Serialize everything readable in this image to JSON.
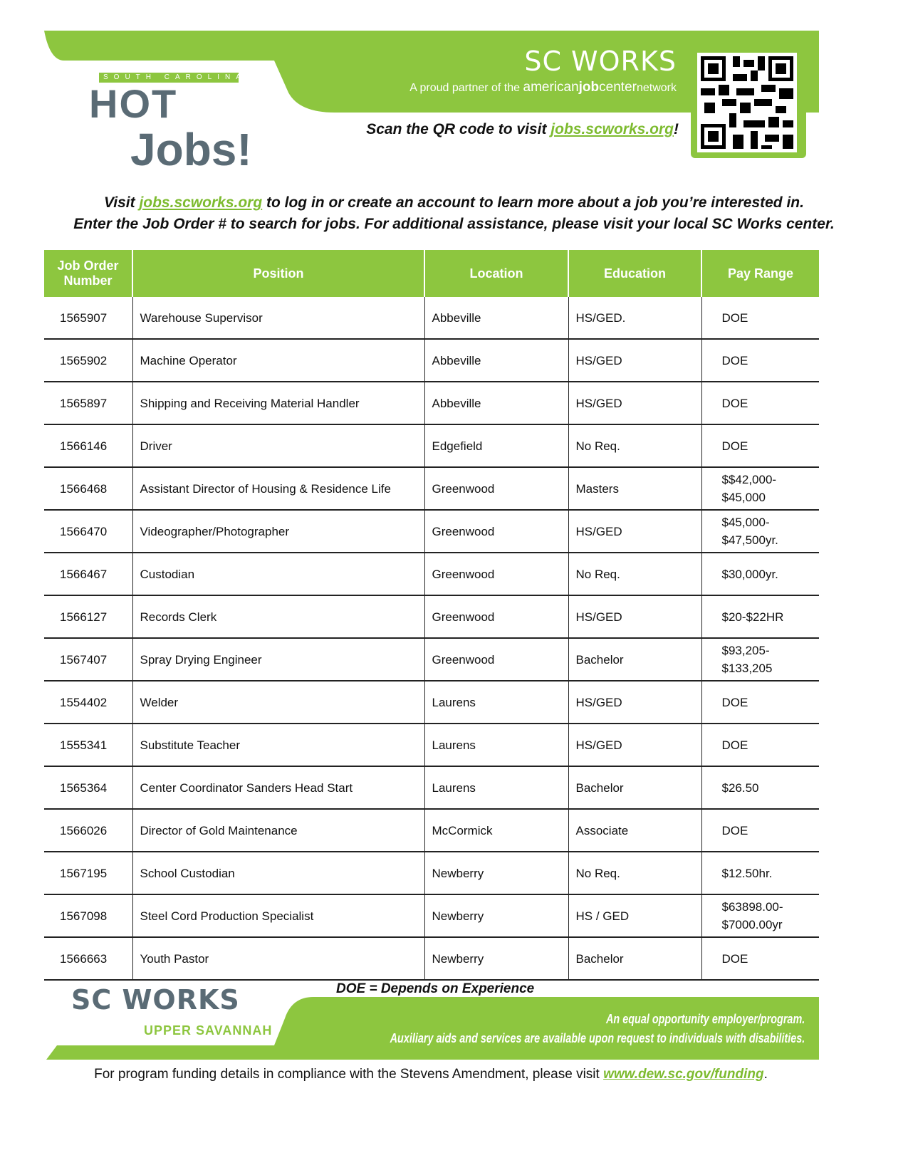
{
  "colors": {
    "accent": "#8dc63f",
    "logo_gray": "#5a6b75"
  },
  "header": {
    "logo_top": "SOUTH CAROLINA",
    "logo_hot": "HOT",
    "logo_jobs": "Jobs!",
    "brand": "SC WORKS",
    "tagline_prefix": "A proud partner of the",
    "tagline_ajc_1": "american",
    "tagline_ajc_2": "job",
    "tagline_ajc_3": "center",
    "tagline_suffix": "network",
    "scan_prefix": "Scan the QR code to visit ",
    "scan_link": "jobs.scworks.org",
    "scan_suffix": "!",
    "qr_icon": "qr-code-icon"
  },
  "intro": {
    "line1_prefix": "Visit ",
    "line1_link": "jobs.scworks.org",
    "line1_suffix": " to log in or create an account to learn more about a job you’re interested in.",
    "line2": "Enter the Job Order # to search for jobs. For additional assistance, please visit your local SC Works center."
  },
  "table": {
    "headers": [
      "Job Order Number",
      "Position",
      "Location",
      "Education",
      "Pay Range"
    ],
    "rows": [
      [
        "1565907",
        "Warehouse Supervisor",
        "Abbeville",
        "HS/GED.",
        "DOE"
      ],
      [
        "1565902",
        "Machine Operator",
        "Abbeville",
        "HS/GED",
        "DOE"
      ],
      [
        "1565897",
        "Shipping and Receiving Material Handler",
        "Abbeville",
        "HS/GED",
        "DOE"
      ],
      [
        "1566146",
        "Driver",
        "Edgefield",
        "No Req.",
        "DOE"
      ],
      [
        "1566468",
        "Assistant Director of Housing & Residence Life",
        "Greenwood",
        "Masters",
        "$$42,000-\n$45,000"
      ],
      [
        "1566470",
        "Videographer/Photographer",
        "Greenwood",
        "HS/GED",
        "$45,000-\n$47,500yr."
      ],
      [
        "1566467",
        "Custodian",
        "Greenwood",
        "No Req.",
        "$30,000yr."
      ],
      [
        "1566127",
        "Records Clerk",
        "Greenwood",
        "HS/GED",
        "$20-$22HR"
      ],
      [
        "1567407",
        "Spray Drying Engineer",
        "Greenwood",
        "Bachelor",
        "$93,205-\n$133,205"
      ],
      [
        "1554402",
        "Welder",
        "Laurens",
        "HS/GED",
        "DOE"
      ],
      [
        "1555341",
        "Substitute Teacher",
        "Laurens",
        "HS/GED",
        "DOE"
      ],
      [
        "1565364",
        "Center Coordinator Sanders Head Start",
        "Laurens",
        "Bachelor",
        "$26.50"
      ],
      [
        "1566026",
        "Director of Gold Maintenance",
        "McCormick",
        "Associate",
        "DOE"
      ],
      [
        "1567195",
        "School Custodian",
        "Newberry",
        "No Req.",
        "$12.50hr."
      ],
      [
        "1567098",
        "Steel Cord Production Specialist",
        "Newberry",
        "HS / GED",
        "$63898.00-\n$7000.00yr"
      ],
      [
        "1566663",
        "Youth Pastor",
        "Newberry",
        "Bachelor",
        "DOE"
      ]
    ]
  },
  "footer": {
    "doe_note": "DOE = Depends on Experience",
    "brand": "SC WORKS",
    "region": "UPPER SAVANNAH",
    "eeo_line1": "An equal opportunity employer/program.",
    "eeo_line2": "Auxiliary aids and services are available upon request to individuals with disabilities.",
    "funding_prefix": "For program funding details in compliance with the Stevens Amendment, please visit ",
    "funding_link": "www.dew.sc.gov/funding",
    "funding_suffix": "."
  }
}
